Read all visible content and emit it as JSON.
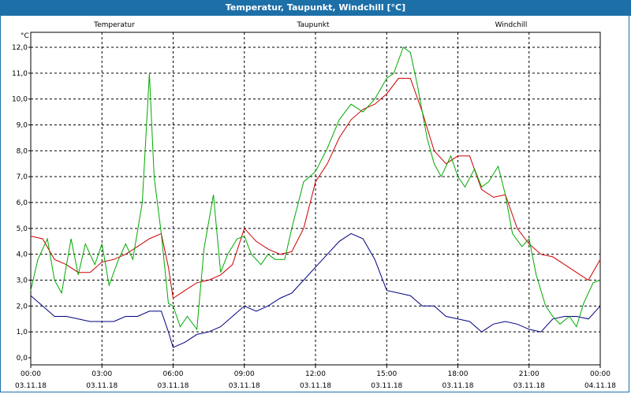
{
  "window": {
    "title": "Temperatur, Taupunkt, Windchill [°C]"
  },
  "chart_data": {
    "type": "line",
    "title": "Temperatur, Taupunkt, Windchill [°C]",
    "ylabel": "°C",
    "ylim": [
      0,
      12
    ],
    "xlim": [
      0,
      24
    ],
    "yticks": [
      "0,0",
      "1,0",
      "2,0",
      "3,0",
      "4,0",
      "5,0",
      "6,0",
      "7,0",
      "8,0",
      "9,0",
      "10,0",
      "11,0",
      "12,0"
    ],
    "xticks": [
      {
        "time": "00:00",
        "date": "03.11.18"
      },
      {
        "time": "03:00",
        "date": "03.11.18"
      },
      {
        "time": "06:00",
        "date": "03.11.18"
      },
      {
        "time": "09:00",
        "date": "03.11.18"
      },
      {
        "time": "12:00",
        "date": "03.11.18"
      },
      {
        "time": "15:00",
        "date": "03.11.18"
      },
      {
        "time": "18:00",
        "date": "03.11.18"
      },
      {
        "time": "21:00",
        "date": "03.11.18"
      },
      {
        "time": "00:00",
        "date": "04.11.18"
      }
    ],
    "grid": true,
    "series": [
      {
        "name": "Temperatur",
        "color": "#cc0000",
        "x": [
          0,
          0.5,
          1,
          1.5,
          2,
          2.5,
          3,
          3.5,
          4,
          4.5,
          5,
          5.5,
          5.8,
          6,
          6.5,
          7,
          7.5,
          8,
          8.5,
          9,
          9.5,
          10,
          10.5,
          11,
          11.5,
          12,
          12.5,
          13,
          13.5,
          14,
          14.5,
          15,
          15.5,
          16,
          16.5,
          17,
          17.5,
          18,
          18.5,
          19,
          19.5,
          20,
          20.5,
          21,
          21.5,
          22,
          22.5,
          23,
          23.5,
          24
        ],
        "values": [
          4.7,
          4.6,
          3.8,
          3.6,
          3.3,
          3.3,
          3.7,
          3.8,
          4.0,
          4.3,
          4.6,
          4.8,
          3.5,
          2.3,
          2.6,
          2.9,
          3.0,
          3.2,
          3.6,
          5.0,
          4.5,
          4.2,
          4.0,
          4.1,
          5.0,
          6.8,
          7.5,
          8.5,
          9.2,
          9.6,
          9.8,
          10.2,
          10.8,
          10.8,
          9.5,
          8.0,
          7.5,
          7.8,
          7.8,
          6.5,
          6.2,
          6.3,
          5.0,
          4.4,
          4.0,
          3.9,
          3.6,
          3.3,
          3.0,
          3.8
        ]
      },
      {
        "name": "Taupunkt",
        "color": "#000080",
        "x": [
          0,
          0.5,
          1,
          1.5,
          2,
          2.5,
          3,
          3.5,
          4,
          4.5,
          5,
          5.5,
          5.8,
          6,
          6.5,
          7,
          7.5,
          8,
          8.5,
          9,
          9.5,
          10,
          10.5,
          11,
          11.5,
          12,
          12.5,
          13,
          13.5,
          14,
          14.5,
          15,
          15.5,
          16,
          16.5,
          17,
          17.5,
          18,
          18.5,
          19,
          19.5,
          20,
          20.5,
          21,
          21.5,
          22,
          22.5,
          23,
          23.5,
          24
        ],
        "values": [
          2.4,
          2.0,
          1.6,
          1.6,
          1.5,
          1.4,
          1.4,
          1.4,
          1.6,
          1.6,
          1.8,
          1.8,
          1.0,
          0.4,
          0.6,
          0.9,
          1.0,
          1.2,
          1.6,
          2.0,
          1.8,
          2.0,
          2.3,
          2.5,
          3.0,
          3.5,
          4.0,
          4.5,
          4.8,
          4.6,
          3.8,
          2.6,
          2.5,
          2.4,
          2.0,
          2.0,
          1.6,
          1.5,
          1.4,
          1.0,
          1.3,
          1.4,
          1.3,
          1.1,
          1.0,
          1.5,
          1.6,
          1.6,
          1.5,
          2.0
        ]
      },
      {
        "name": "Windchill",
        "color": "#00aa00",
        "x": [
          0,
          0.3,
          0.7,
          1,
          1.3,
          1.7,
          2,
          2.3,
          2.7,
          3,
          3.3,
          3.7,
          4,
          4.3,
          4.7,
          5,
          5.2,
          5.5,
          5.8,
          6,
          6.3,
          6.6,
          7,
          7.3,
          7.7,
          8,
          8.3,
          8.7,
          9,
          9.3,
          9.7,
          10,
          10.3,
          10.7,
          11,
          11.5,
          12,
          12.5,
          13,
          13.5,
          14,
          14.5,
          15,
          15.3,
          15.7,
          16,
          16.3,
          16.7,
          17,
          17.3,
          17.7,
          18,
          18.3,
          18.7,
          19,
          19.3,
          19.7,
          20,
          20.3,
          20.7,
          21,
          21.3,
          21.7,
          22,
          22.3,
          22.7,
          23,
          23.3,
          23.7,
          24
        ],
        "values": [
          2.6,
          3.8,
          4.6,
          3.0,
          2.5,
          4.6,
          3.2,
          4.4,
          3.6,
          4.4,
          2.8,
          3.8,
          4.4,
          3.8,
          6.0,
          11.0,
          7.0,
          4.8,
          2.1,
          2.0,
          1.2,
          1.6,
          1.1,
          4.2,
          6.3,
          3.3,
          4.0,
          4.6,
          4.7,
          4.0,
          3.6,
          4.0,
          3.8,
          3.8,
          5.0,
          6.8,
          7.2,
          8.1,
          9.2,
          9.8,
          9.5,
          10.0,
          10.8,
          11.0,
          12.0,
          11.8,
          10.5,
          8.5,
          7.5,
          7.0,
          7.8,
          7.0,
          6.6,
          7.3,
          6.6,
          6.8,
          7.4,
          6.3,
          4.8,
          4.3,
          4.6,
          3.2,
          2.0,
          1.6,
          1.3,
          1.6,
          1.2,
          2.1,
          2.9,
          3.0
        ]
      }
    ]
  }
}
